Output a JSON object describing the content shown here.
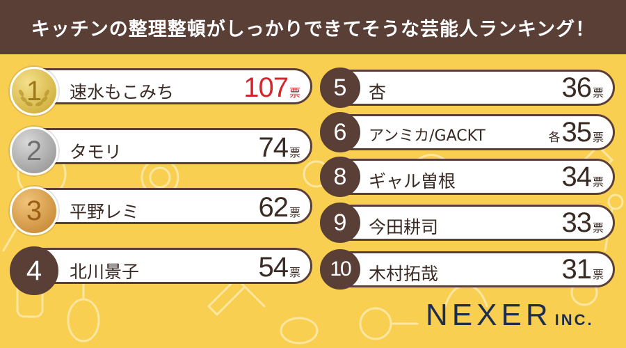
{
  "title": "キッチンの整理整頓がしっかりできてそうな芸能人ランキング！",
  "vote_unit": "票",
  "each_prefix": "各",
  "logo": {
    "main": "NEXER",
    "inc": "INC."
  },
  "colors": {
    "brown": "#5a3f37",
    "yellow": "#f9cf52",
    "gold": "#e3c34d",
    "silver": "#a9a9a9",
    "bronze": "#d89a3c",
    "red": "#d4262e"
  },
  "left": [
    {
      "rank": "1",
      "name": "速水もこみち",
      "votes": "107",
      "medal": "gold"
    },
    {
      "rank": "2",
      "name": "タモリ",
      "votes": "74",
      "medal": "silver"
    },
    {
      "rank": "3",
      "name": "平野レミ",
      "votes": "62",
      "medal": "bronze"
    },
    {
      "rank": "4",
      "name": "北川景子",
      "votes": "54"
    }
  ],
  "right": [
    {
      "rank": "5",
      "name": "杏",
      "votes": "36"
    },
    {
      "rank": "6",
      "name": "アンミカ/GACKT",
      "votes": "35"
    },
    {
      "rank": "8",
      "name": "ギャル曽根",
      "votes": "34"
    },
    {
      "rank": "9",
      "name": "今田耕司",
      "votes": "33"
    },
    {
      "rank": "10",
      "name": "木村拓哉",
      "votes": "31"
    }
  ]
}
